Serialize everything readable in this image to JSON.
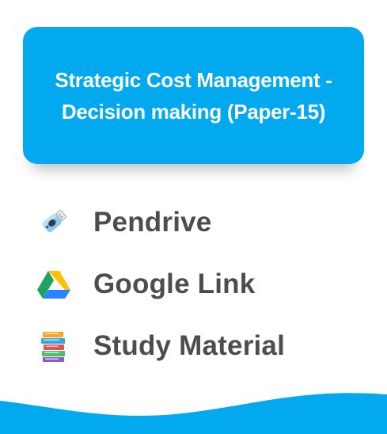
{
  "title": {
    "line1": "Strategic Cost Management -",
    "line2": "Decision making (Paper-15)"
  },
  "items": [
    {
      "label": "Pendrive",
      "icon": "pendrive-icon"
    },
    {
      "label": "Google Link",
      "icon": "google-drive-icon"
    },
    {
      "label": "Study Material",
      "icon": "books-icon"
    }
  ],
  "colors": {
    "accent": "#03a9ef",
    "text": "#4d4d4d",
    "background": "#ffffff"
  }
}
